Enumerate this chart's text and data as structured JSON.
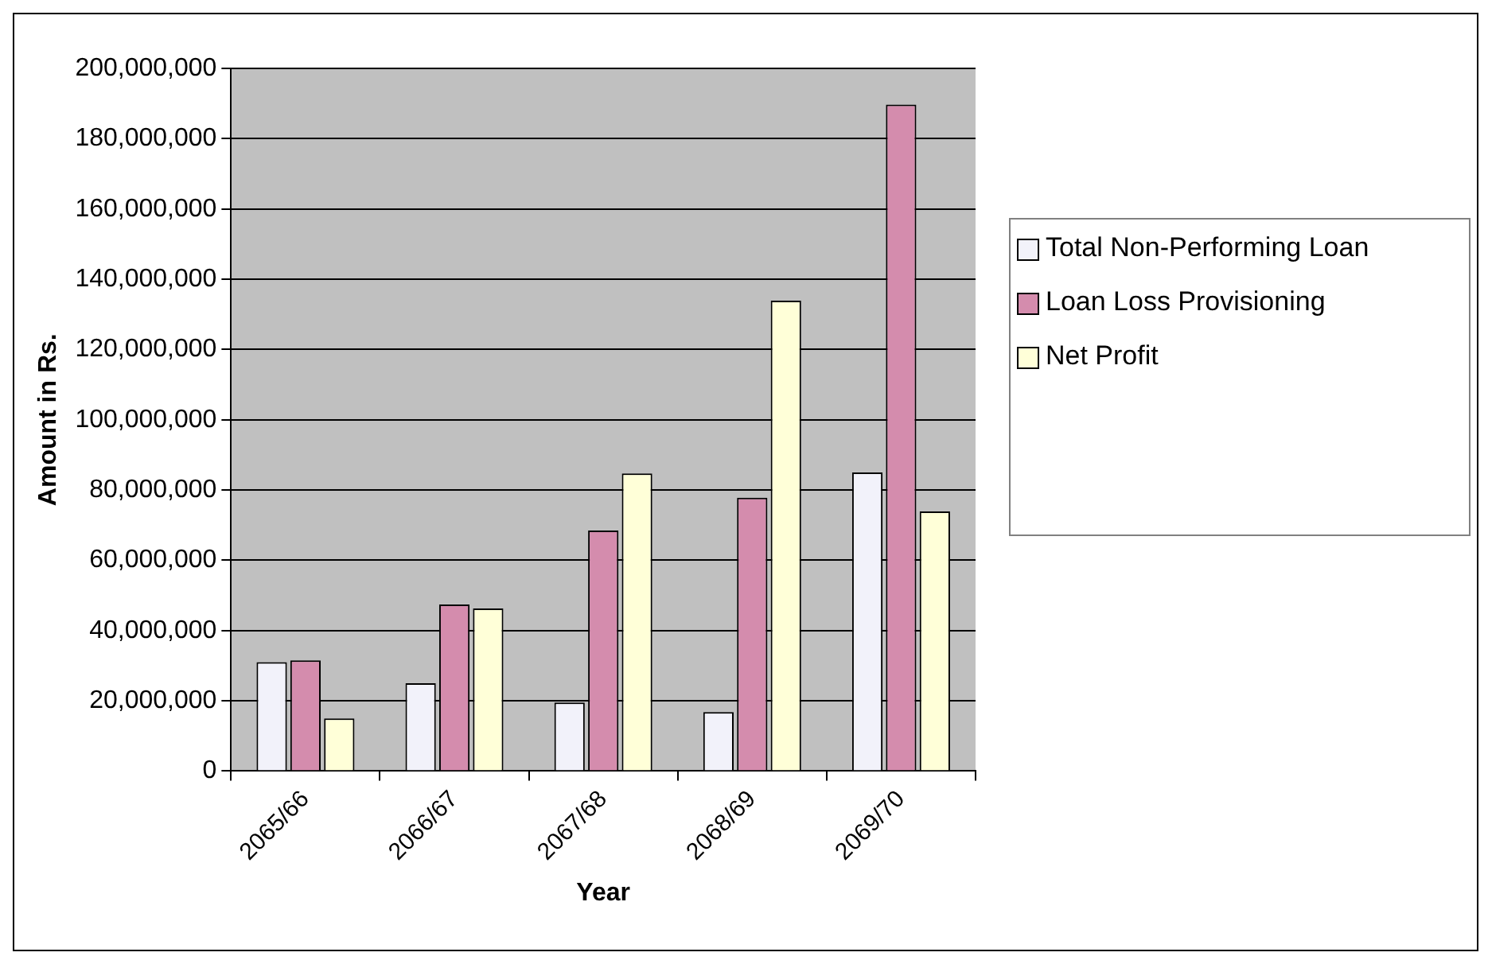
{
  "chart_data": {
    "type": "bar",
    "xlabel": "Year",
    "ylabel": "Amount in Rs.",
    "categories": [
      "2065/66",
      "2066/67",
      "2067/68",
      "2068/69",
      "2069/70"
    ],
    "series": [
      {
        "name": "Total Non-Performing Loan",
        "color": "#f2f2fa",
        "values": [
          31000000,
          25000000,
          19500000,
          16800000,
          85000000
        ]
      },
      {
        "name": "Loan Loss Provisioning",
        "color": "#d48cad",
        "values": [
          31500000,
          47400000,
          68500000,
          77800000,
          189700000
        ]
      },
      {
        "name": "Net Profit",
        "color": "#ffffd8",
        "values": [
          15000000,
          46300000,
          84700000,
          133900000,
          73900000
        ]
      }
    ],
    "ylim": [
      0,
      200000000
    ],
    "yticks": [
      0,
      {
        "value": 20000000,
        "label": "20,000,000"
      },
      {
        "value": 40000000,
        "label": "40,000,000"
      },
      {
        "value": 60000000,
        "label": "60,000,000"
      },
      {
        "value": 80000000,
        "label": "80,000,000"
      },
      {
        "value": 100000000,
        "label": "100,000,000"
      },
      {
        "value": 120000000,
        "label": "120,000,000"
      },
      {
        "value": 140000000,
        "label": "140,000,000"
      },
      {
        "value": 160000000,
        "label": "160,000,000"
      },
      {
        "value": 180000000,
        "label": "180,000,000"
      },
      {
        "value": 200000000,
        "label": "200,000,000"
      }
    ],
    "grid": "y",
    "legend": "right"
  }
}
